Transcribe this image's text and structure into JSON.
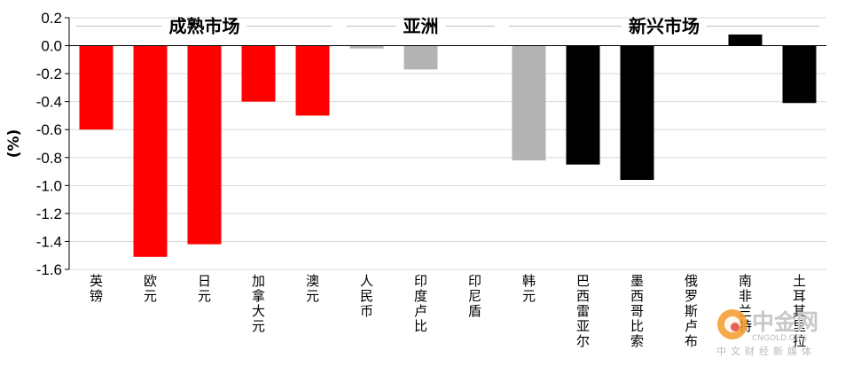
{
  "chart_data": {
    "type": "bar",
    "ylabel": "(%)",
    "ylim": [
      -1.6,
      0.2
    ],
    "yticks": [
      0.2,
      0.0,
      -0.2,
      -0.4,
      -0.6,
      -0.8,
      -1.0,
      -1.2,
      -1.4,
      -1.6
    ],
    "grid": true,
    "groups": [
      {
        "name": "成熟市场",
        "start": 0,
        "end": 4
      },
      {
        "name": "亚洲",
        "start": 5,
        "end": 7
      },
      {
        "name": "新兴市场",
        "start": 8,
        "end": 13
      }
    ],
    "categories": [
      "英镑",
      "欧元",
      "日元",
      "加拿大元",
      "澳元",
      "人民币",
      "印度卢比",
      "印尼盾",
      "韩元",
      "巴西雷亚尔",
      "墨西哥比索",
      "俄罗斯卢布",
      "南非兰特",
      "土耳其里拉"
    ],
    "values": [
      -0.6,
      -1.51,
      -1.42,
      -0.4,
      -0.5,
      -0.02,
      -0.17,
      0.0,
      -0.82,
      -0.85,
      -0.96,
      0.0,
      0.08,
      -0.41
    ],
    "colors": [
      "#ff0000",
      "#ff0000",
      "#ff0000",
      "#ff0000",
      "#ff0000",
      "#b3b3b3",
      "#b3b3b3",
      "#b3b3b3",
      "#b3b3b3",
      "#000000",
      "#000000",
      "#000000",
      "#000000",
      "#000000"
    ]
  },
  "watermark": {
    "logo_text": "中金网",
    "domain": "CNGOLD.ORG",
    "tagline": "中文财经新媒体"
  }
}
